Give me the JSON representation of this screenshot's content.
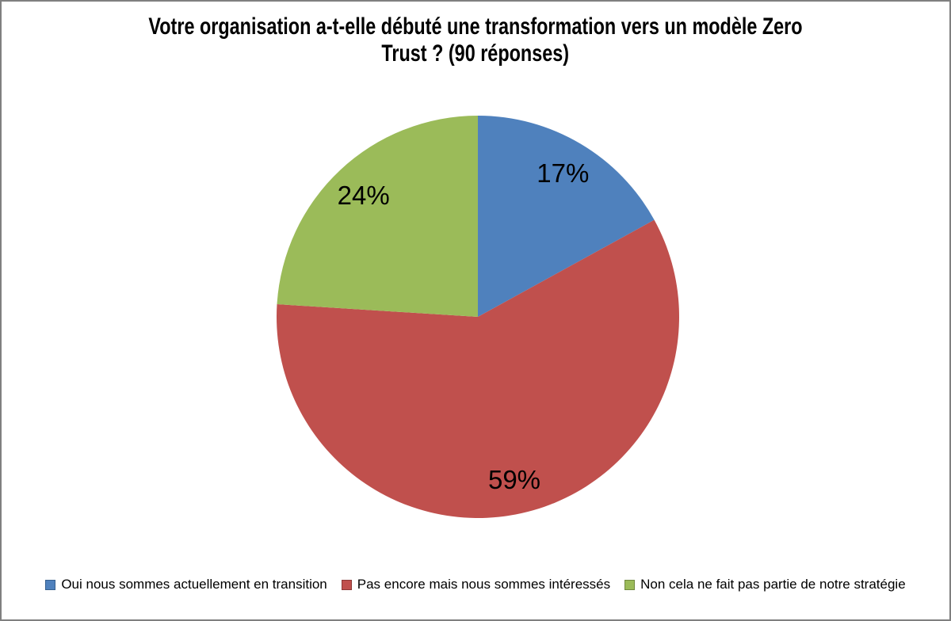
{
  "chart_data": {
    "type": "pie",
    "title": "Votre organisation a-t-elle débuté une transformation vers un modèle Zero Trust ? (90 réponses)",
    "title_lines": [
      "Votre organisation a-t-elle débuté une transformation vers un modèle Zero",
      "Trust ? (90 réponses)"
    ],
    "total_responses": 90,
    "start_angle_deg": 0,
    "direction": "clockwise",
    "legend_position": "bottom",
    "data_labels": "percent",
    "background_color": "#FFFFFF",
    "frame_border_color": "#808080",
    "label_color": "#000000",
    "slices": [
      {
        "label": "Oui nous sommes actuellement en transition",
        "value_pct": 17,
        "data_label": "17%",
        "color": "#4F81BD",
        "swatch_border": "#36608F"
      },
      {
        "label": "Pas encore mais nous sommes intéressés",
        "value_pct": 59,
        "data_label": "59%",
        "color": "#C0504D",
        "swatch_border": "#8C3836"
      },
      {
        "label": "Non cela ne fait pas partie de notre stratégie",
        "value_pct": 24,
        "data_label": "24%",
        "color": "#9BBB59",
        "swatch_border": "#71893F"
      }
    ]
  }
}
